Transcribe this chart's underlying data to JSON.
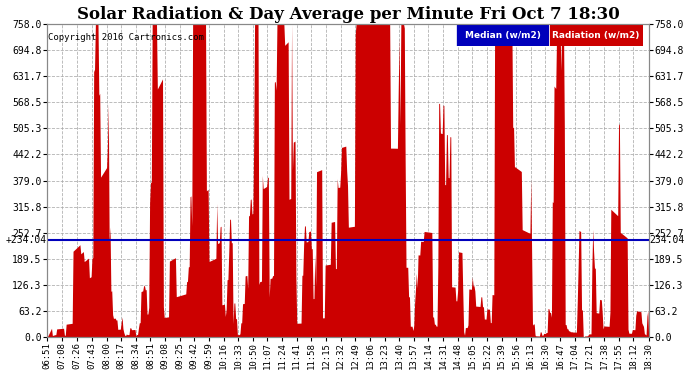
{
  "title": "Solar Radiation & Day Average per Minute Fri Oct 7 18:30",
  "copyright": "Copyright 2016 Cartronics.com",
  "median_value": 234.04,
  "y_max": 758.0,
  "y_min": 0.0,
  "yticks": [
    0.0,
    63.2,
    126.3,
    189.5,
    252.7,
    315.8,
    379.0,
    442.2,
    505.3,
    568.5,
    631.7,
    694.8,
    758.0
  ],
  "background_color": "#ffffff",
  "fill_color": "#cc0000",
  "median_color": "#0000bb",
  "grid_color": "#aaaaaa",
  "title_fontsize": 12,
  "legend_median_bg": "#0000bb",
  "legend_radiation_bg": "#cc0000",
  "x_labels": [
    "06:51",
    "07:08",
    "07:26",
    "07:43",
    "08:00",
    "08:17",
    "08:34",
    "08:51",
    "09:08",
    "09:25",
    "09:42",
    "09:59",
    "10:16",
    "10:33",
    "10:50",
    "11:07",
    "11:24",
    "11:41",
    "11:58",
    "12:15",
    "12:32",
    "12:49",
    "13:06",
    "13:23",
    "13:40",
    "13:57",
    "14:14",
    "14:31",
    "14:48",
    "15:05",
    "15:22",
    "15:39",
    "15:56",
    "16:13",
    "16:30",
    "16:47",
    "17:04",
    "17:21",
    "17:38",
    "17:55",
    "18:12",
    "18:30"
  ]
}
